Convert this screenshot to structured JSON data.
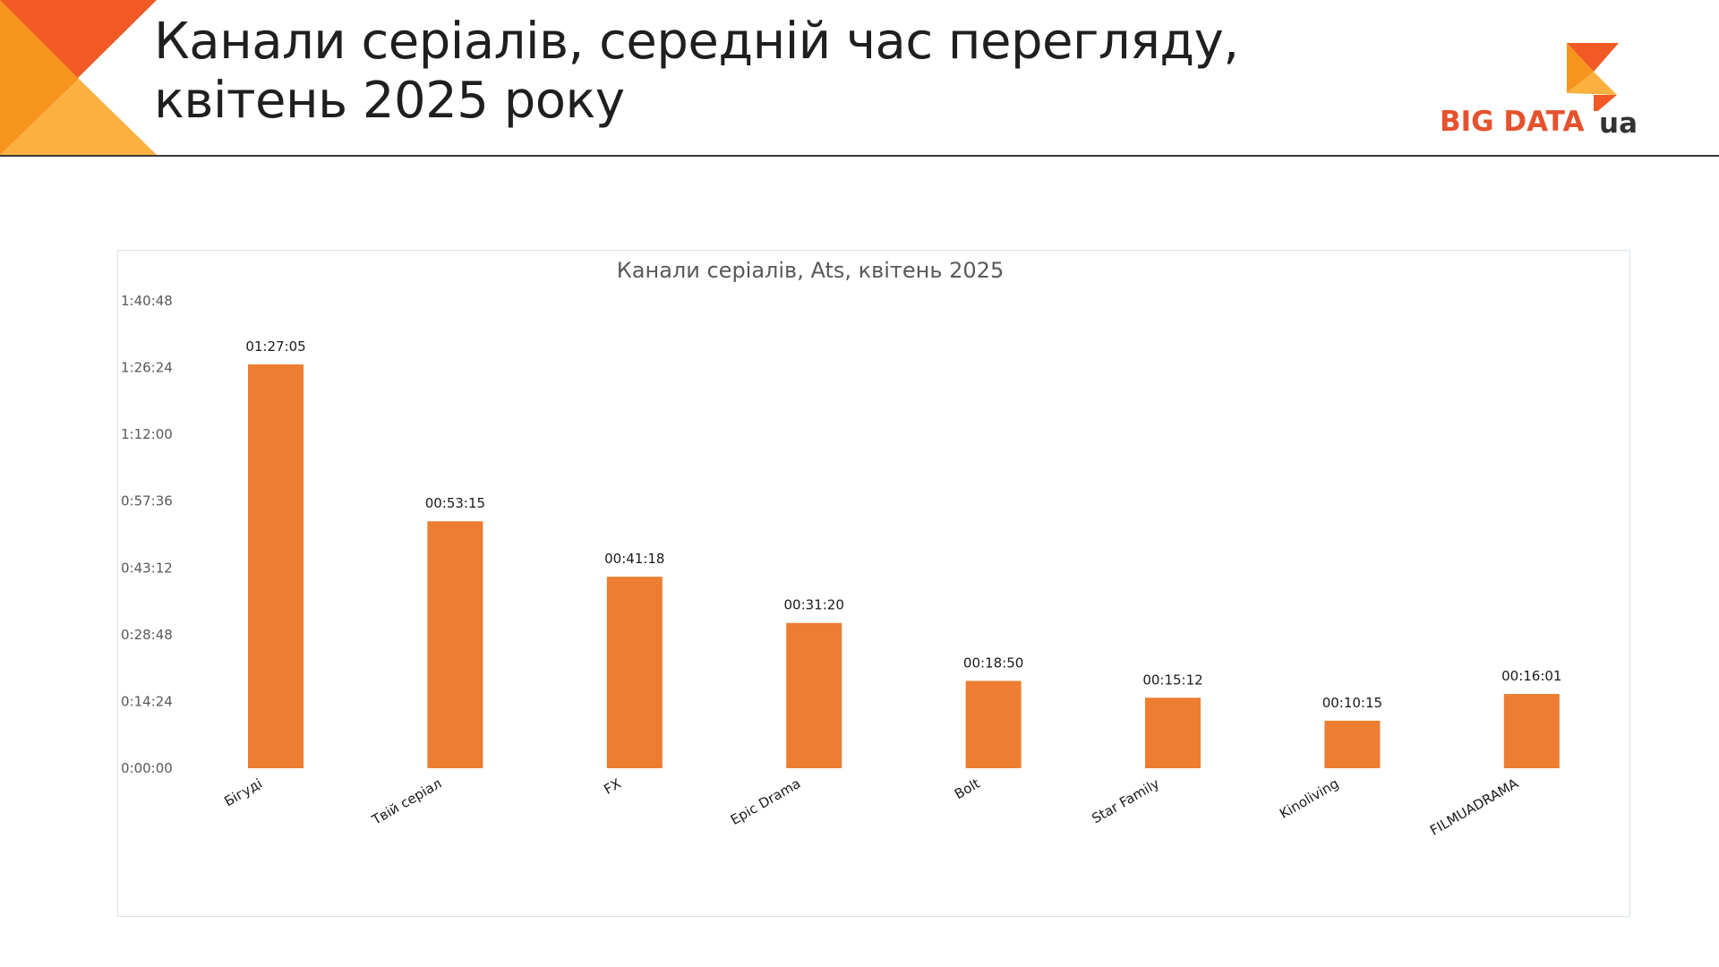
{
  "header": {
    "title_line1": "Канали серіалів, середній час перегляду,",
    "title_line2": "квітень 2025 року"
  },
  "logo": {
    "text": "BIG DATA",
    "suffix": "ua"
  },
  "colors": {
    "bar": "#ed7d31",
    "corner_dark": "#f15a24",
    "corner_mid": "#f7941d",
    "corner_light": "#fbb040"
  },
  "chart_data": {
    "type": "bar",
    "title": "Канали серіалів, Ats, квітень 2025",
    "xlabel": "",
    "ylabel": "",
    "ylim": [
      0,
      6048
    ],
    "yticks": [
      0,
      864,
      1728,
      2592,
      3456,
      4320,
      5184,
      6048
    ],
    "ytick_labels": [
      "0:00:00",
      "0:14:24",
      "0:28:48",
      "0:43:12",
      "0:57:36",
      "1:12:00",
      "1:26:24",
      "1:40:48"
    ],
    "categories": [
      "Бігуді",
      "Твій серіал",
      "FX",
      "Epic Drama",
      "Bolt",
      "Star Family",
      "Kinoliving",
      "FILMUADRAMA"
    ],
    "values": [
      5225,
      3195,
      2478,
      1880,
      1130,
      912,
      615,
      961
    ],
    "value_labels": [
      "01:27:05",
      "00:53:15",
      "00:41:18",
      "00:31:20",
      "00:18:50",
      "00:15:12",
      "00:10:15",
      "00:16:01"
    ],
    "grid": false,
    "legend": "none"
  }
}
